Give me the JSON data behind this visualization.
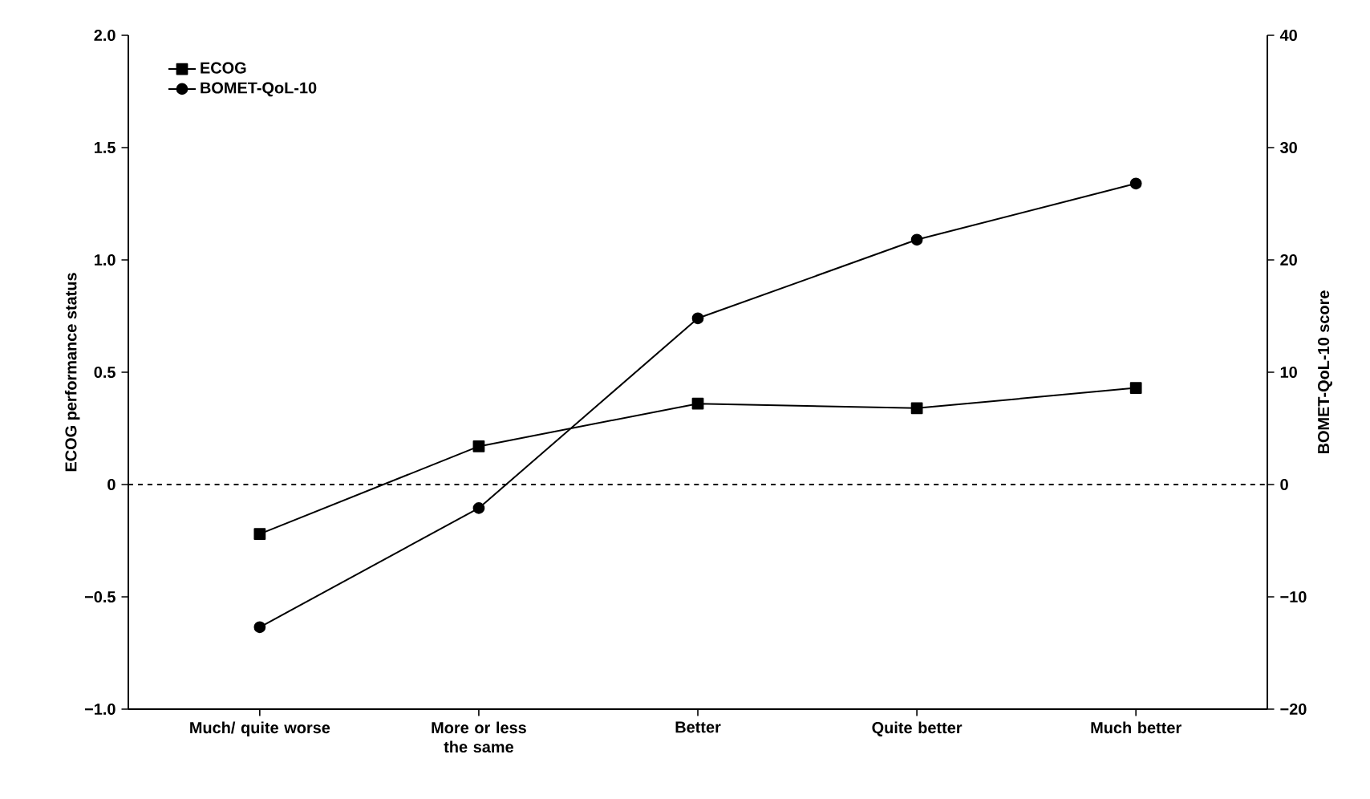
{
  "chart_data": {
    "type": "line",
    "xlabel": null,
    "ylabel": "ECOG performance status",
    "y2label": "BOMET-QoL-10 score",
    "categories": [
      "Much/ quite worse",
      "More or less the same",
      "Better",
      "Quite better",
      "Much better"
    ],
    "series": [
      {
        "name": "ECOG",
        "color": "#000000",
        "marker": "square",
        "values": [
          -0.22,
          0.17,
          0.36,
          0.34,
          0.43
        ]
      },
      {
        "name": "BOMET-QoL-10",
        "color": "#000000",
        "marker": "circle",
        "axis": "y2",
        "values": [
          -12.7,
          -2.1,
          14.8,
          21.8,
          26.8
        ]
      }
    ],
    "ylim": [
      -1,
      2
    ],
    "yticks": [
      {
        "value": -1,
        "label": "−1.0"
      },
      {
        "value": -0.5,
        "label": "−0.5"
      },
      {
        "value": 0,
        "label": "0"
      },
      {
        "value": 0.5,
        "label": "0.5"
      },
      {
        "value": 1,
        "label": "1.0"
      },
      {
        "value": 1.5,
        "label": "1.5"
      },
      {
        "value": 2,
        "label": "2.0"
      }
    ],
    "y2lim": [
      -20,
      40
    ],
    "y2ticks": [
      {
        "value": -20,
        "label": "−20"
      },
      {
        "value": -10,
        "label": "−10"
      },
      {
        "value": 0,
        "label": "0"
      },
      {
        "value": 10,
        "label": "10"
      },
      {
        "value": 20,
        "label": "20"
      },
      {
        "value": 30,
        "label": "30"
      },
      {
        "value": 40,
        "label": "40"
      }
    ],
    "ref_lines": [
      {
        "axis": "y",
        "value": 0,
        "line_style": "dashed",
        "color": "#000000"
      }
    ],
    "legend": "top left",
    "grid": false,
    "line_style": "solid"
  }
}
